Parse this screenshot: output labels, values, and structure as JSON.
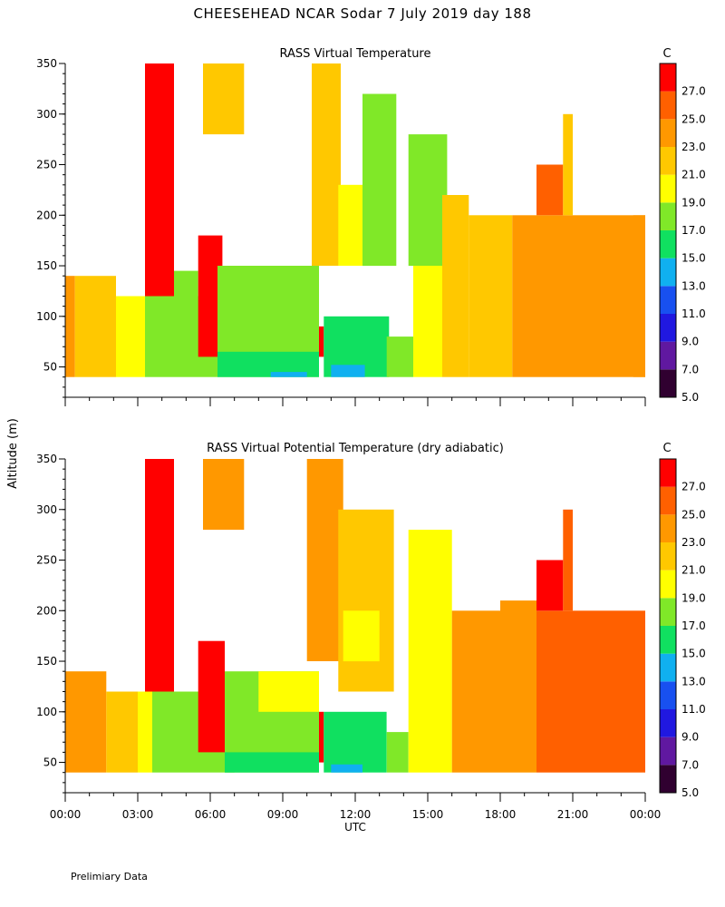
{
  "header": {
    "title": "CHEESEHEAD   NCAR Sodar    7 July 2019   day 188",
    "ylabel": "Altitude (m)",
    "xlabel": "UTC",
    "footnote": "Prelimiary Data"
  },
  "colors": {
    "palette": [
      "#300030",
      "#6018a0",
      "#2018e0",
      "#1850f0",
      "#10b0f0",
      "#10e060",
      "#80e828",
      "#ffff00",
      "#ffc800",
      "#ff9800",
      "#ff6000",
      "#ff0000"
    ]
  },
  "colorbar": {
    "unit": "C",
    "ticks": [
      "27.0",
      "25.0",
      "23.0",
      "21.0",
      "19.0",
      "17.0",
      "15.0",
      "13.0",
      "11.0",
      "9.0",
      "7.0",
      "5.0"
    ]
  },
  "chart_data": [
    {
      "type": "heatmap",
      "title": "RASS Virtual Temperature",
      "xlabel": "UTC",
      "ylabel": "Altitude (m)",
      "x_ticks": [
        "00:00",
        "03:00",
        "06:00",
        "09:00",
        "12:00",
        "15:00",
        "18:00",
        "21:00",
        "00:00"
      ],
      "y_ticks": [
        "50",
        "100",
        "150",
        "200",
        "250",
        "300",
        "350"
      ],
      "xlim_hours": [
        0,
        24
      ],
      "ylim_m": [
        20,
        350
      ],
      "colorbar_range_c": [
        5,
        29
      ],
      "regions": [
        {
          "t0": 0.0,
          "t1": 0.4,
          "z0": 40,
          "z1": 140,
          "c": "#ff9800"
        },
        {
          "t0": 0.4,
          "t1": 2.1,
          "z0": 40,
          "z1": 140,
          "c": "#ffc800"
        },
        {
          "t0": 2.1,
          "t1": 3.3,
          "z0": 40,
          "z1": 120,
          "c": "#ffff00"
        },
        {
          "t0": 3.3,
          "t1": 6.3,
          "z0": 40,
          "z1": 120,
          "c": "#80e828"
        },
        {
          "t0": 3.3,
          "t1": 4.5,
          "z0": 120,
          "z1": 350,
          "c": "#ff0000"
        },
        {
          "t0": 4.5,
          "t1": 5.5,
          "z0": 120,
          "z1": 145,
          "c": "#80e828"
        },
        {
          "t0": 5.5,
          "t1": 6.5,
          "z0": 60,
          "z1": 180,
          "c": "#ff0000"
        },
        {
          "t0": 6.3,
          "t1": 10.5,
          "z0": 40,
          "z1": 150,
          "c": "#80e828"
        },
        {
          "t0": 6.3,
          "t1": 10.5,
          "z0": 40,
          "z1": 65,
          "c": "#10e060"
        },
        {
          "t0": 8.5,
          "t1": 10.0,
          "z0": 40,
          "z1": 45,
          "c": "#10b0f0"
        },
        {
          "t0": 5.7,
          "t1": 7.4,
          "z0": 280,
          "z1": 350,
          "c": "#ffc800"
        },
        {
          "t0": 10.2,
          "t1": 11.4,
          "z0": 150,
          "z1": 350,
          "c": "#ffc800"
        },
        {
          "t0": 10.5,
          "t1": 10.7,
          "z0": 60,
          "z1": 90,
          "c": "#ff0000"
        },
        {
          "t0": 10.7,
          "t1": 13.4,
          "z0": 40,
          "z1": 100,
          "c": "#10e060"
        },
        {
          "t0": 11.0,
          "t1": 12.4,
          "z0": 40,
          "z1": 52,
          "c": "#10b0f0"
        },
        {
          "t0": 11.3,
          "t1": 12.3,
          "z0": 150,
          "z1": 230,
          "c": "#ffff00"
        },
        {
          "t0": 12.3,
          "t1": 13.7,
          "z0": 150,
          "z1": 320,
          "c": "#80e828"
        },
        {
          "t0": 13.3,
          "t1": 14.4,
          "z0": 40,
          "z1": 80,
          "c": "#80e828"
        },
        {
          "t0": 14.2,
          "t1": 15.8,
          "z0": 150,
          "z1": 280,
          "c": "#80e828"
        },
        {
          "t0": 14.4,
          "t1": 15.6,
          "z0": 40,
          "z1": 150,
          "c": "#ffff00"
        },
        {
          "t0": 15.6,
          "t1": 16.7,
          "z0": 40,
          "z1": 220,
          "c": "#ffc800"
        },
        {
          "t0": 16.7,
          "t1": 18.5,
          "z0": 40,
          "z1": 200,
          "c": "#ffc800"
        },
        {
          "t0": 18.5,
          "t1": 24.0,
          "z0": 40,
          "z1": 200,
          "c": "#ff9800"
        },
        {
          "t0": 19.5,
          "t1": 20.6,
          "z0": 200,
          "z1": 250,
          "c": "#ff6000"
        },
        {
          "t0": 20.6,
          "t1": 21.0,
          "z0": 200,
          "z1": 300,
          "c": "#ffc800"
        },
        {
          "t0": 23.5,
          "t1": 24.0,
          "z0": 40,
          "z1": 200,
          "c": "#ff9800"
        }
      ]
    },
    {
      "type": "heatmap",
      "title": "RASS Virtual Potential Temperature (dry adiabatic)",
      "xlabel": "UTC",
      "ylabel": "Altitude (m)",
      "x_ticks": [
        "00:00",
        "03:00",
        "06:00",
        "09:00",
        "12:00",
        "15:00",
        "18:00",
        "21:00",
        "00:00"
      ],
      "y_ticks": [
        "50",
        "100",
        "150",
        "200",
        "250",
        "300",
        "350"
      ],
      "xlim_hours": [
        0,
        24
      ],
      "ylim_m": [
        20,
        350
      ],
      "colorbar_range_c": [
        5,
        29
      ],
      "regions": [
        {
          "t0": 0.0,
          "t1": 1.7,
          "z0": 40,
          "z1": 140,
          "c": "#ff9800"
        },
        {
          "t0": 1.7,
          "t1": 3.0,
          "z0": 40,
          "z1": 120,
          "c": "#ffc800"
        },
        {
          "t0": 3.0,
          "t1": 3.6,
          "z0": 40,
          "z1": 120,
          "c": "#ffff00"
        },
        {
          "t0": 3.6,
          "t1": 7.0,
          "z0": 40,
          "z1": 120,
          "c": "#80e828"
        },
        {
          "t0": 3.3,
          "t1": 4.5,
          "z0": 120,
          "z1": 350,
          "c": "#ff0000"
        },
        {
          "t0": 5.5,
          "t1": 6.6,
          "z0": 60,
          "z1": 170,
          "c": "#ff0000"
        },
        {
          "t0": 6.6,
          "t1": 10.5,
          "z0": 40,
          "z1": 140,
          "c": "#80e828"
        },
        {
          "t0": 6.6,
          "t1": 10.5,
          "z0": 40,
          "z1": 60,
          "c": "#10e060"
        },
        {
          "t0": 8.0,
          "t1": 10.5,
          "z0": 100,
          "z1": 140,
          "c": "#ffff00"
        },
        {
          "t0": 5.7,
          "t1": 7.4,
          "z0": 280,
          "z1": 350,
          "c": "#ff9800"
        },
        {
          "t0": 10.0,
          "t1": 11.5,
          "z0": 150,
          "z1": 350,
          "c": "#ff9800"
        },
        {
          "t0": 10.5,
          "t1": 10.7,
          "z0": 50,
          "z1": 100,
          "c": "#ff0000"
        },
        {
          "t0": 10.7,
          "t1": 13.3,
          "z0": 40,
          "z1": 100,
          "c": "#10e060"
        },
        {
          "t0": 11.0,
          "t1": 12.3,
          "z0": 40,
          "z1": 48,
          "c": "#10b0f0"
        },
        {
          "t0": 11.3,
          "t1": 13.6,
          "z0": 120,
          "z1": 300,
          "c": "#ffc800"
        },
        {
          "t0": 11.5,
          "t1": 13.0,
          "z0": 150,
          "z1": 200,
          "c": "#ffff00"
        },
        {
          "t0": 13.3,
          "t1": 14.2,
          "z0": 40,
          "z1": 80,
          "c": "#80e828"
        },
        {
          "t0": 14.2,
          "t1": 16.0,
          "z0": 40,
          "z1": 280,
          "c": "#ffff00"
        },
        {
          "t0": 16.0,
          "t1": 18.0,
          "z0": 40,
          "z1": 200,
          "c": "#ff9800"
        },
        {
          "t0": 18.0,
          "t1": 19.5,
          "z0": 40,
          "z1": 210,
          "c": "#ff9800"
        },
        {
          "t0": 19.5,
          "t1": 24.0,
          "z0": 40,
          "z1": 200,
          "c": "#ff6000"
        },
        {
          "t0": 19.5,
          "t1": 20.6,
          "z0": 200,
          "z1": 250,
          "c": "#ff0000"
        },
        {
          "t0": 20.6,
          "t1": 21.0,
          "z0": 200,
          "z1": 300,
          "c": "#ff6000"
        }
      ]
    }
  ]
}
